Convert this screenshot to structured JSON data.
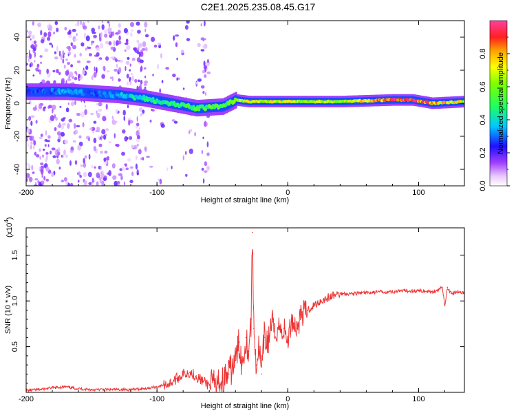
{
  "title": "C2E1.2025.235.08.45.G17",
  "chart_data": [
    {
      "type": "heatmap",
      "xlabel": "Height of straight line (km)",
      "ylabel": "Frequency (Hz)",
      "xlim": [
        -200,
        135
      ],
      "ylim": [
        -50,
        50
      ],
      "xticks": [
        -200,
        -100,
        0,
        100
      ],
      "xtick_labels": [
        "-200",
        "-100",
        "0",
        "100"
      ],
      "yticks": [
        -40,
        -20,
        0,
        20,
        40
      ],
      "ytick_labels": [
        "-40",
        "-20",
        "0",
        "20",
        "40"
      ],
      "colorbar": {
        "label": "Normalized spectral amplitude",
        "range": [
          0,
          1
        ],
        "ticks": [
          0.0,
          0.2,
          0.4,
          0.6,
          0.8
        ],
        "tick_labels": [
          "0.0",
          "0.2",
          "0.4",
          "0.6",
          "0.8"
        ]
      },
      "ridge": {
        "description_points": [
          {
            "x": -200,
            "f": 7,
            "amp": 0.25
          },
          {
            "x": -170,
            "f": 7,
            "amp": 0.35
          },
          {
            "x": -150,
            "f": 6,
            "amp": 0.3
          },
          {
            "x": -130,
            "f": 5,
            "amp": 0.35
          },
          {
            "x": -110,
            "f": 3,
            "amp": 0.45
          },
          {
            "x": -90,
            "f": 0,
            "amp": 0.5
          },
          {
            "x": -70,
            "f": -3,
            "amp": 0.55
          },
          {
            "x": -50,
            "f": -2,
            "amp": 0.55
          },
          {
            "x": -40,
            "f": 2,
            "amp": 0.6
          },
          {
            "x": -30,
            "f": 1,
            "amp": 0.75
          },
          {
            "x": 0,
            "f": 1,
            "amp": 0.7
          },
          {
            "x": 40,
            "f": 1,
            "amp": 0.65
          },
          {
            "x": 80,
            "f": 2,
            "amp": 0.95
          },
          {
            "x": 95,
            "f": 2,
            "amp": 0.95
          },
          {
            "x": 110,
            "f": 0,
            "amp": 0.85
          },
          {
            "x": 135,
            "f": 1,
            "amp": 0.7
          }
        ]
      }
    },
    {
      "type": "line",
      "xlabel": "Height of straight line (km)",
      "ylabel": "SNR (10 * v/v)",
      "exponent_label": "(x10",
      "exponent_power": "4",
      "exponent_close": ")",
      "xlim": [
        -200,
        135
      ],
      "ylim": [
        0,
        1.8
      ],
      "xticks": [
        -200,
        -100,
        0,
        100
      ],
      "xtick_labels": [
        "-200",
        "-100",
        "0",
        "100"
      ],
      "yticks": [
        0.5,
        1.0,
        1.5
      ],
      "ytick_labels": [
        "0.5",
        "1.0",
        "1.5"
      ],
      "series": [
        {
          "name": "SNR",
          "color": "#ee3333",
          "x": [
            -200,
            -190,
            -180,
            -170,
            -160,
            -150,
            -140,
            -130,
            -120,
            -110,
            -100,
            -90,
            -85,
            -80,
            -75,
            -70,
            -65,
            -60,
            -55,
            -50,
            -45,
            -40,
            -37,
            -35,
            -32,
            -30,
            -28,
            -27,
            -26,
            -24,
            -22,
            -20,
            -18,
            -15,
            -12,
            -10,
            -7,
            -5,
            -3,
            0,
            3,
            5,
            7,
            10,
            15,
            20,
            25,
            30,
            35,
            40,
            50,
            60,
            70,
            80,
            90,
            100,
            110,
            115,
            118,
            120,
            122,
            125,
            130,
            135
          ],
          "values": [
            0.02,
            0.03,
            0.05,
            0.06,
            0.04,
            0.03,
            0.03,
            0.03,
            0.03,
            0.04,
            0.06,
            0.1,
            0.15,
            0.2,
            0.22,
            0.18,
            0.12,
            0.08,
            0.06,
            0.12,
            0.2,
            0.35,
            0.55,
            0.3,
            0.6,
            0.45,
            0.8,
            1.75,
            0.7,
            0.3,
            0.5,
            0.2,
            0.6,
            0.55,
            0.8,
            0.6,
            0.75,
            0.65,
            0.7,
            0.55,
            0.8,
            0.75,
            0.7,
            0.85,
            0.9,
            0.95,
            1.0,
            1.03,
            1.06,
            1.08,
            1.08,
            1.09,
            1.1,
            1.1,
            1.11,
            1.11,
            1.1,
            1.12,
            1.15,
            0.95,
            1.15,
            1.08,
            1.1,
            1.09
          ]
        }
      ]
    }
  ]
}
